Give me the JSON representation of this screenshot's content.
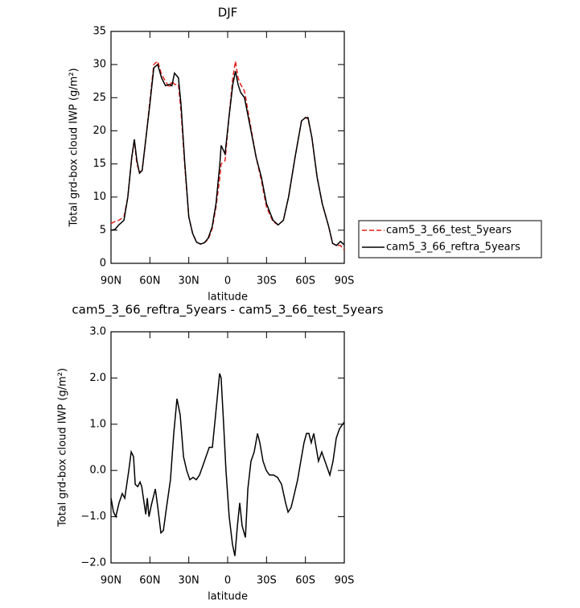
{
  "chart_data": [
    {
      "type": "line",
      "title": "DJF",
      "xlabel": "latitude",
      "ylabel": "Total grd-box cloud IWP (g/m²)",
      "x": [
        90,
        87,
        84,
        80,
        77,
        74,
        72,
        70,
        68,
        66,
        63,
        60,
        57,
        54,
        51,
        48,
        45,
        43,
        41,
        38,
        36,
        33,
        30,
        27,
        24,
        21,
        18,
        15,
        12,
        9,
        6,
        5,
        2,
        -1,
        -4,
        -6,
        -8,
        -10,
        -13,
        -17,
        -22,
        -26,
        -30,
        -35,
        -39,
        -43,
        -47,
        -52,
        -57,
        -60,
        -62,
        -65,
        -69,
        -73,
        -78,
        -81,
        -84,
        -87,
        -90
      ],
      "series": [
        {
          "name": "cam5_3_66_test_5years",
          "color": "#e3211c",
          "linestyle": "dashed",
          "values": [
            6.0,
            6.3,
            6.5,
            7,
            10,
            16,
            18.5,
            15,
            13.8,
            14,
            19,
            24.5,
            30,
            30.5,
            28.5,
            27.5,
            26.5,
            27.5,
            27,
            27,
            23,
            14.5,
            7,
            4.5,
            3.2,
            2.9,
            3.1,
            3.6,
            5.2,
            8.5,
            13,
            15,
            15.5,
            22,
            28,
            30.5,
            28,
            27,
            26,
            21.5,
            16,
            12.5,
            8.5,
            6.3,
            5.8,
            6.5,
            10,
            16,
            21.5,
            22,
            21.8,
            19,
            13,
            9,
            5.5,
            3,
            2.7,
            2.7,
            2.0
          ]
        },
        {
          "name": "cam5_3_66_reftra_5years",
          "color": "#000000",
          "linestyle": "solid",
          "values": [
            5.0,
            5.1,
            5.8,
            6.5,
            10,
            16,
            18.7,
            15.5,
            13.6,
            14,
            19,
            24,
            29.5,
            30,
            28,
            26.8,
            27,
            26.8,
            28.7,
            28,
            24,
            15,
            7,
            4.5,
            3.2,
            2.9,
            3.1,
            3.8,
            5.5,
            9,
            15,
            17.8,
            16.5,
            22,
            27,
            29,
            27,
            25.8,
            25,
            21,
            16,
            13,
            9,
            6.5,
            5.8,
            6.5,
            10,
            16,
            21.5,
            22,
            22,
            19,
            13,
            9,
            5.5,
            3,
            2.7,
            3.3,
            2.8
          ]
        }
      ],
      "xlim": [
        90,
        -90
      ],
      "xticks": [
        {
          "value": 90,
          "label": "90N"
        },
        {
          "value": 60,
          "label": "60N"
        },
        {
          "value": 30,
          "label": "30N"
        },
        0,
        {
          "value": -30,
          "label": "30S"
        },
        {
          "value": -60,
          "label": "60S"
        },
        {
          "value": -90,
          "label": "90S"
        }
      ],
      "ylim": [
        0,
        35
      ],
      "yticks": [
        0,
        5,
        10,
        15,
        20,
        25,
        30,
        35
      ],
      "legend": "right"
    },
    {
      "type": "line",
      "title": "cam5_3_66_reftra_5years - cam5_3_66_test_5years",
      "xlabel": "latitude",
      "ylabel": "Total grd-box cloud IWP (g/m²)",
      "x": [
        90,
        88.1,
        86.3,
        83.8,
        81.3,
        79.4,
        76.3,
        74.4,
        72.6,
        71.3,
        69.4,
        67.6,
        66.3,
        63.2,
        62,
        60.7,
        58.9,
        55.8,
        53.9,
        51.5,
        49.6,
        47.2,
        44.1,
        41.6,
        39.1,
        36.6,
        34.1,
        31.6,
        29.2,
        26.7,
        24.2,
        21.7,
        19.2,
        16.7,
        14.2,
        11.8,
        9.3,
        6.2,
        5,
        3.1,
        1.3,
        -1.2,
        -3.7,
        -5.6,
        -7.5,
        -9.3,
        -11.2,
        -13.7,
        -15.6,
        -18,
        -20.5,
        -23,
        -24.8,
        -27.3,
        -29.8,
        -32.3,
        -35.4,
        -38.5,
        -41.6,
        -44.7,
        -46.6,
        -49,
        -51.5,
        -54,
        -56.4,
        -58.9,
        -60.8,
        -62.7,
        -64.5,
        -66.4,
        -68.3,
        -70.1,
        -72.6,
        -75.1,
        -78.8,
        -81.3,
        -83.8,
        -86.3,
        -90
      ],
      "series": [
        {
          "name": "difference",
          "color": "#000000",
          "linestyle": "solid",
          "values": [
            -0.6,
            -0.9,
            -1.0,
            -0.7,
            -0.5,
            -0.6,
            0,
            0.4,
            0.3,
            -0.3,
            -0.35,
            -0.25,
            -0.35,
            -0.95,
            -0.6,
            -1.0,
            -0.75,
            -0.4,
            -0.8,
            -1.35,
            -1.3,
            -0.8,
            -0.2,
            0.8,
            1.55,
            1.2,
            0.3,
            0,
            -0.2,
            -0.15,
            -0.2,
            -0.1,
            0.1,
            0.3,
            0.5,
            0.5,
            1.2,
            2.1,
            2.0,
            1.0,
            0,
            -1.0,
            -1.6,
            -1.85,
            -1.2,
            -0.7,
            -1.2,
            -1.45,
            -0.4,
            0.2,
            0.4,
            0.8,
            0.6,
            0.2,
            0.0,
            -0.1,
            -0.1,
            -0.15,
            -0.3,
            -0.7,
            -0.9,
            -0.8,
            -0.5,
            -0.2,
            0.2,
            0.6,
            0.8,
            0.8,
            0.6,
            0.8,
            0.5,
            0.2,
            0.4,
            0.2,
            -0.1,
            0.2,
            0.7,
            0.9,
            1.05
          ]
        }
      ],
      "xlim": [
        90,
        -90
      ],
      "xticks": [
        {
          "value": 90,
          "label": "90N"
        },
        {
          "value": 60,
          "label": "60N"
        },
        {
          "value": 30,
          "label": "30N"
        },
        0,
        {
          "value": -30,
          "label": "30S"
        },
        {
          "value": -60,
          "label": "60S"
        },
        {
          "value": -90,
          "label": "90S"
        }
      ],
      "ylim": [
        -2,
        3
      ],
      "yticks": [
        {
          "value": -2,
          "label": "−2.0"
        },
        {
          "value": -1,
          "label": "−1.0"
        },
        {
          "value": 0,
          "label": "0.0"
        },
        {
          "value": 1,
          "label": "1.0"
        },
        {
          "value": 2,
          "label": "2.0"
        },
        {
          "value": 3,
          "label": "3.0"
        }
      ]
    }
  ]
}
